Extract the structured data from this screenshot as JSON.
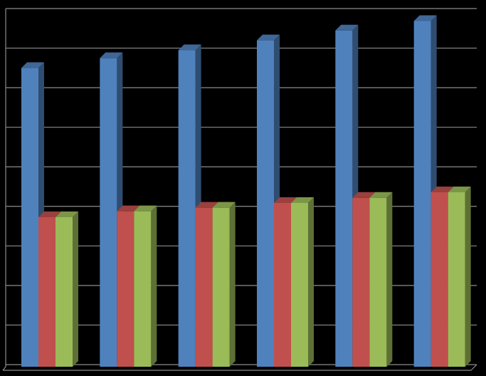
{
  "chart_data": {
    "type": "bar3d",
    "categories": [
      null,
      null,
      null,
      null,
      null,
      null
    ],
    "series": [
      {
        "color": "#4f81bd",
        "values": [
          7.55,
          7.8,
          8.0,
          8.25,
          8.5,
          8.74
        ]
      },
      {
        "color": "#c0504d",
        "values": [
          3.78,
          3.93,
          4.02,
          4.14,
          4.27,
          4.41
        ]
      },
      {
        "color": "#9bbb59",
        "values": [
          3.78,
          3.93,
          4.02,
          4.14,
          4.27,
          4.41
        ]
      }
    ],
    "ylim": [
      0,
      9
    ],
    "yticks": [
      0,
      1,
      2,
      3,
      4,
      5,
      6,
      7,
      8,
      9
    ],
    "grid": true
  }
}
